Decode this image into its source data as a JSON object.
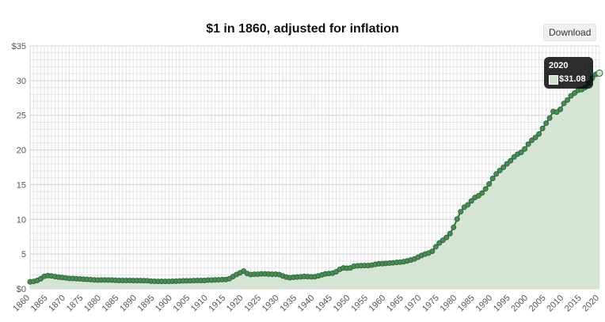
{
  "header": {
    "title": "$1 in 1860, adjusted for inflation",
    "download_label": "Download"
  },
  "tooltip": {
    "year": "2020",
    "value": "$31.08"
  },
  "colors": {
    "line": "#2f6b3a",
    "fill": "#d5e5d5",
    "grid": "#e4e4e4"
  },
  "chart_data": {
    "type": "area",
    "title": "$1 in 1860, adjusted for inflation",
    "xlabel": "",
    "ylabel": "",
    "ylim": [
      0,
      35
    ],
    "xlim": [
      1860,
      2020
    ],
    "y_ticks": [
      0,
      5,
      10,
      15,
      20,
      25,
      30,
      35
    ],
    "y_tick_labels": [
      "$0",
      "5",
      "10",
      "15",
      "20",
      "25",
      "30",
      "$35"
    ],
    "x_ticks": [
      1860,
      1865,
      1870,
      1875,
      1880,
      1885,
      1890,
      1895,
      1900,
      1905,
      1910,
      1915,
      1920,
      1925,
      1930,
      1935,
      1940,
      1945,
      1950,
      1955,
      1960,
      1965,
      1970,
      1975,
      1980,
      1985,
      1990,
      1995,
      2000,
      2005,
      2010,
      2015,
      2020
    ],
    "grid": true,
    "series": [
      {
        "x": [
          1860,
          1861,
          1862,
          1863,
          1864,
          1865,
          1866,
          1867,
          1868,
          1869,
          1870,
          1871,
          1872,
          1873,
          1874,
          1875,
          1876,
          1877,
          1878,
          1879,
          1880,
          1881,
          1882,
          1883,
          1884,
          1885,
          1886,
          1887,
          1888,
          1889,
          1890,
          1891,
          1892,
          1893,
          1894,
          1895,
          1896,
          1897,
          1898,
          1899,
          1900,
          1901,
          1902,
          1903,
          1904,
          1905,
          1906,
          1907,
          1908,
          1909,
          1910,
          1911,
          1912,
          1913,
          1914,
          1915,
          1916,
          1917,
          1918,
          1919,
          1920,
          1921,
          1922,
          1923,
          1924,
          1925,
          1926,
          1927,
          1928,
          1929,
          1930,
          1931,
          1932,
          1933,
          1934,
          1935,
          1936,
          1937,
          1938,
          1939,
          1940,
          1941,
          1942,
          1943,
          1944,
          1945,
          1946,
          1947,
          1948,
          1949,
          1950,
          1951,
          1952,
          1953,
          1954,
          1955,
          1956,
          1957,
          1958,
          1959,
          1960,
          1961,
          1962,
          1963,
          1964,
          1965,
          1966,
          1967,
          1968,
          1969,
          1970,
          1971,
          1972,
          1973,
          1974,
          1975,
          1976,
          1977,
          1978,
          1979,
          1980,
          1981,
          1982,
          1983,
          1984,
          1985,
          1986,
          1987,
          1988,
          1989,
          1990,
          1991,
          1992,
          1993,
          1994,
          1995,
          1996,
          1997,
          1998,
          1999,
          2000,
          2001,
          2002,
          2003,
          2004,
          2005,
          2006,
          2007,
          2008,
          2009,
          2010,
          2011,
          2012,
          2013,
          2014,
          2015,
          2016,
          2017,
          2018,
          2019,
          2020
        ],
        "values": [
          1.0,
          1.06,
          1.2,
          1.45,
          1.8,
          1.9,
          1.85,
          1.75,
          1.68,
          1.62,
          1.56,
          1.5,
          1.48,
          1.45,
          1.42,
          1.38,
          1.35,
          1.32,
          1.28,
          1.26,
          1.27,
          1.27,
          1.26,
          1.25,
          1.22,
          1.2,
          1.2,
          1.2,
          1.2,
          1.18,
          1.18,
          1.18,
          1.17,
          1.16,
          1.1,
          1.08,
          1.07,
          1.07,
          1.07,
          1.07,
          1.08,
          1.1,
          1.12,
          1.15,
          1.15,
          1.16,
          1.18,
          1.2,
          1.2,
          1.2,
          1.25,
          1.25,
          1.28,
          1.3,
          1.32,
          1.33,
          1.45,
          1.75,
          2.05,
          2.3,
          2.55,
          2.2,
          2.05,
          2.1,
          2.1,
          2.15,
          2.15,
          2.12,
          2.1,
          2.1,
          2.05,
          1.85,
          1.68,
          1.6,
          1.65,
          1.7,
          1.72,
          1.78,
          1.75,
          1.72,
          1.74,
          1.85,
          2.0,
          2.15,
          2.2,
          2.25,
          2.45,
          2.8,
          3.0,
          2.97,
          3.0,
          3.25,
          3.3,
          3.33,
          3.35,
          3.35,
          3.4,
          3.52,
          3.6,
          3.62,
          3.66,
          3.7,
          3.74,
          3.8,
          3.84,
          3.9,
          4.02,
          4.15,
          4.3,
          4.55,
          4.8,
          5.0,
          5.15,
          5.4,
          6.05,
          6.6,
          7.0,
          7.4,
          7.95,
          8.85,
          10.05,
          11.1,
          11.75,
          12.1,
          12.65,
          13.15,
          13.4,
          13.8,
          14.4,
          15.1,
          15.9,
          16.55,
          17.05,
          17.5,
          18.0,
          18.45,
          19.0,
          19.4,
          19.65,
          20.15,
          20.85,
          21.4,
          21.8,
          22.3,
          23.1,
          23.85,
          24.6,
          25.55,
          25.45,
          25.85,
          26.7,
          27.2,
          27.8,
          28.2,
          28.6,
          28.7,
          29.0,
          29.65,
          30.35,
          30.9,
          31.08
        ]
      }
    ]
  }
}
